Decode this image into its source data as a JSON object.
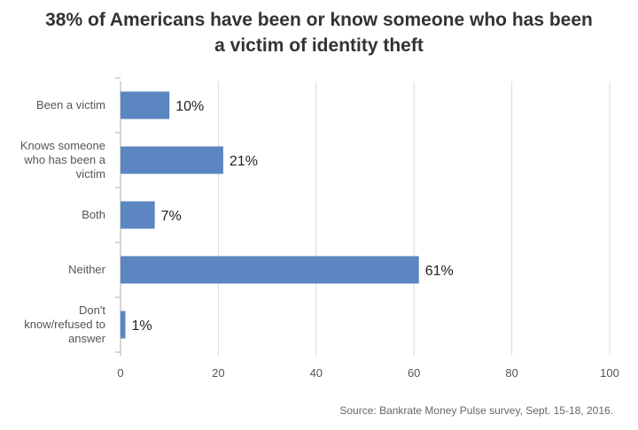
{
  "chart_data": {
    "type": "bar",
    "orientation": "horizontal",
    "title_lines": [
      "38% of Americans have been or know someone who has been",
      "a victim of identity theft"
    ],
    "categories": [
      [
        "Been a victim"
      ],
      [
        "Knows someone",
        "who has been a",
        "victim"
      ],
      [
        "Both"
      ],
      [
        "Neither"
      ],
      [
        "Don't",
        "know/refused to",
        "answer"
      ]
    ],
    "values": [
      10,
      21,
      7,
      61,
      1
    ],
    "value_labels": [
      "10%",
      "21%",
      "7%",
      "61%",
      "1%"
    ],
    "x_ticks": [
      "0",
      "20",
      "40",
      "60",
      "80",
      "100"
    ],
    "xlim": [
      0,
      100
    ],
    "grid": true,
    "bar_color": "#5b86c1",
    "xlabel": "",
    "ylabel": ""
  },
  "source": "Source: Bankrate Money Pulse survey, Sept. 15-18, 2016."
}
